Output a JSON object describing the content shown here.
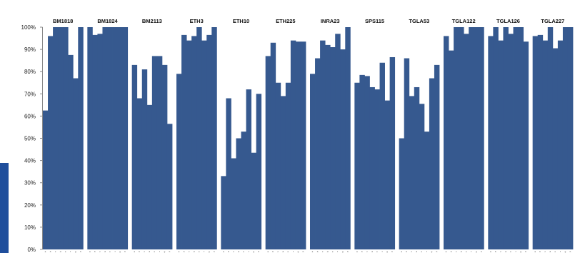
{
  "chart_data": {
    "type": "bar",
    "title": "",
    "xlabel": "",
    "ylabel": "",
    "ylim": [
      0,
      100
    ],
    "y_ticks": [
      "0%",
      "10%",
      "20%",
      "30%",
      "40%",
      "50%",
      "60%",
      "70%",
      "80%",
      "90%",
      "100%"
    ],
    "grid": false,
    "bar_color": "#36598f",
    "sample_labels": [
      "a",
      "b",
      "c",
      "d",
      "e",
      "f",
      "g",
      "h"
    ],
    "groups": [
      {
        "name": "BM1818",
        "values": [
          62.5,
          96,
          100,
          100,
          100,
          87.5,
          77,
          100
        ]
      },
      {
        "name": "BM1824",
        "values": [
          100,
          96.5,
          97,
          100,
          100,
          100,
          100,
          100
        ]
      },
      {
        "name": "BM2113",
        "values": [
          83,
          68,
          81,
          65,
          87,
          87,
          83,
          56.5
        ]
      },
      {
        "name": "ETH3",
        "values": [
          79,
          96.5,
          94,
          96,
          100,
          94,
          96.5,
          100
        ]
      },
      {
        "name": "ETH10",
        "values": [
          33,
          68,
          41,
          50,
          53,
          72,
          43.5,
          70
        ]
      },
      {
        "name": "ETH225",
        "values": [
          87,
          93,
          75,
          69,
          75,
          94,
          93.5,
          93.5
        ]
      },
      {
        "name": "INRA23",
        "values": [
          79,
          86,
          94,
          92,
          91,
          97,
          90,
          100
        ]
      },
      {
        "name": "SPS115",
        "values": [
          75,
          78.5,
          78,
          73,
          72,
          84,
          67,
          86.5
        ]
      },
      {
        "name": "TGLA53",
        "values": [
          50,
          86,
          69,
          73,
          65.5,
          53,
          77,
          83
        ]
      },
      {
        "name": "TGLA122",
        "values": [
          96,
          89.5,
          100,
          100,
          97,
          100,
          100,
          100
        ]
      },
      {
        "name": "TGLA126",
        "values": [
          96,
          100,
          94,
          100,
          97,
          100,
          100,
          93.5
        ]
      },
      {
        "name": "TGLA227",
        "values": [
          96,
          96.5,
          94,
          100,
          90.5,
          94,
          100,
          100
        ]
      }
    ]
  }
}
